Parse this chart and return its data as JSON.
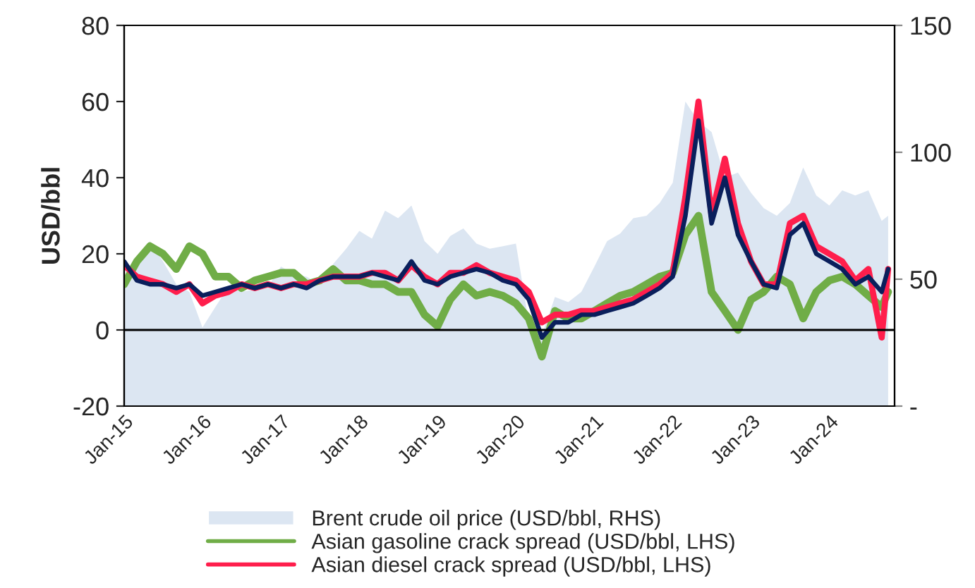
{
  "chart_data": {
    "type": "line",
    "ylabel": "USD/bbl",
    "x": [
      "2015-01",
      "2015-03",
      "2015-05",
      "2015-07",
      "2015-09",
      "2015-11",
      "2016-01",
      "2016-03",
      "2016-05",
      "2016-07",
      "2016-09",
      "2016-11",
      "2017-01",
      "2017-03",
      "2017-05",
      "2017-07",
      "2017-09",
      "2017-11",
      "2018-01",
      "2018-03",
      "2018-05",
      "2018-07",
      "2018-09",
      "2018-11",
      "2019-01",
      "2019-03",
      "2019-05",
      "2019-07",
      "2019-09",
      "2019-11",
      "2020-01",
      "2020-03",
      "2020-05",
      "2020-07",
      "2020-09",
      "2020-11",
      "2021-01",
      "2021-03",
      "2021-05",
      "2021-07",
      "2021-09",
      "2021-11",
      "2022-01",
      "2022-03",
      "2022-05",
      "2022-07",
      "2022-09",
      "2022-11",
      "2023-01",
      "2023-03",
      "2023-05",
      "2023-07",
      "2023-09",
      "2023-11",
      "2024-01",
      "2024-03",
      "2024-05",
      "2024-07",
      "2024-09",
      "2024-10"
    ],
    "series": [
      {
        "name": "Brent crude oil price (USD/bbl, RHS)",
        "type": "area",
        "axis": "y2",
        "color": "#dce6f2",
        "values": [
          48,
          55,
          65,
          57,
          48,
          45,
          31,
          39,
          47,
          45,
          46,
          47,
          55,
          52,
          51,
          48,
          56,
          62,
          69,
          66,
          77,
          74,
          79,
          65,
          60,
          67,
          70,
          64,
          62,
          63,
          64,
          33,
          28,
          43,
          41,
          45,
          55,
          65,
          68,
          74,
          75,
          80,
          88,
          120,
          112,
          108,
          90,
          92,
          84,
          78,
          75,
          80,
          94,
          83,
          79,
          85,
          83,
          85,
          73,
          75
        ]
      },
      {
        "name": "Asian gasoline crack spread (USD/bbl, LHS)",
        "color": "#70ad47",
        "values": [
          12,
          18,
          22,
          20,
          16,
          22,
          20,
          14,
          14,
          11,
          13,
          14,
          15,
          15,
          12,
          13,
          16,
          13,
          13,
          12,
          12,
          10,
          10,
          4,
          1,
          8,
          12,
          9,
          10,
          9,
          7,
          3,
          -7,
          5,
          3,
          3,
          5,
          7,
          9,
          10,
          12,
          14,
          15,
          25,
          30,
          10,
          5,
          0,
          8,
          10,
          14,
          12,
          3,
          10,
          13,
          14,
          12,
          9,
          6,
          10
        ]
      },
      {
        "name": "Asian diesel crack spread (USD/bbl, LHS)",
        "color": "#ff1e4c",
        "values": [
          17,
          14,
          13,
          12,
          10,
          12,
          7,
          9,
          10,
          12,
          11,
          12,
          11,
          12,
          12,
          13,
          14,
          14,
          14,
          15,
          15,
          13,
          17,
          14,
          12,
          15,
          15,
          17,
          15,
          14,
          13,
          10,
          2,
          4,
          4,
          5,
          5,
          6,
          7,
          8,
          10,
          12,
          15,
          35,
          60,
          30,
          45,
          28,
          18,
          12,
          12,
          28,
          30,
          22,
          20,
          18,
          13,
          16,
          -2,
          16
        ]
      },
      {
        "color": "#0a1f5c",
        "values": [
          18,
          13,
          12,
          12,
          11,
          12,
          9,
          10,
          11,
          12,
          11,
          12,
          11,
          12,
          11,
          13,
          14,
          14,
          14,
          15,
          14,
          13,
          18,
          13,
          12,
          14,
          15,
          16,
          15,
          13,
          12,
          8,
          -2,
          2,
          2,
          4,
          4,
          5,
          6,
          7,
          9,
          11,
          14,
          30,
          55,
          28,
          40,
          25,
          18,
          12,
          11,
          25,
          28,
          20,
          18,
          16,
          12,
          14,
          10,
          16
        ]
      }
    ],
    "xlim": [
      "2015-01-01",
      "2024-10-31"
    ],
    "xticks": [
      {
        "value": "2015-01",
        "label": "Jan-15"
      },
      {
        "value": "2016-01",
        "label": "Jan-16"
      },
      {
        "value": "2017-01",
        "label": "Jan-17"
      },
      {
        "value": "2018-01",
        "label": "Jan-18"
      },
      {
        "value": "2019-01",
        "label": "Jan-19"
      },
      {
        "value": "2020-01",
        "label": "Jan-20"
      },
      {
        "value": "2021-01",
        "label": "Jan-21"
      },
      {
        "value": "2022-01",
        "label": "Jan-22"
      },
      {
        "value": "2023-01",
        "label": "Jan-23"
      },
      {
        "value": "2024-01",
        "label": "Jan-24"
      }
    ],
    "ylim": [
      -20,
      80
    ],
    "yticks": [
      -20,
      0,
      20,
      40,
      60,
      80
    ],
    "y2lim": [
      0,
      150
    ],
    "y2ticks": [
      {
        "value": 0,
        "label": "-"
      },
      50,
      100,
      150
    ],
    "ref_lines": [
      {
        "axis": "y",
        "value": 0,
        "color": "#000000"
      }
    ],
    "grid": false,
    "legend": "bottom"
  }
}
